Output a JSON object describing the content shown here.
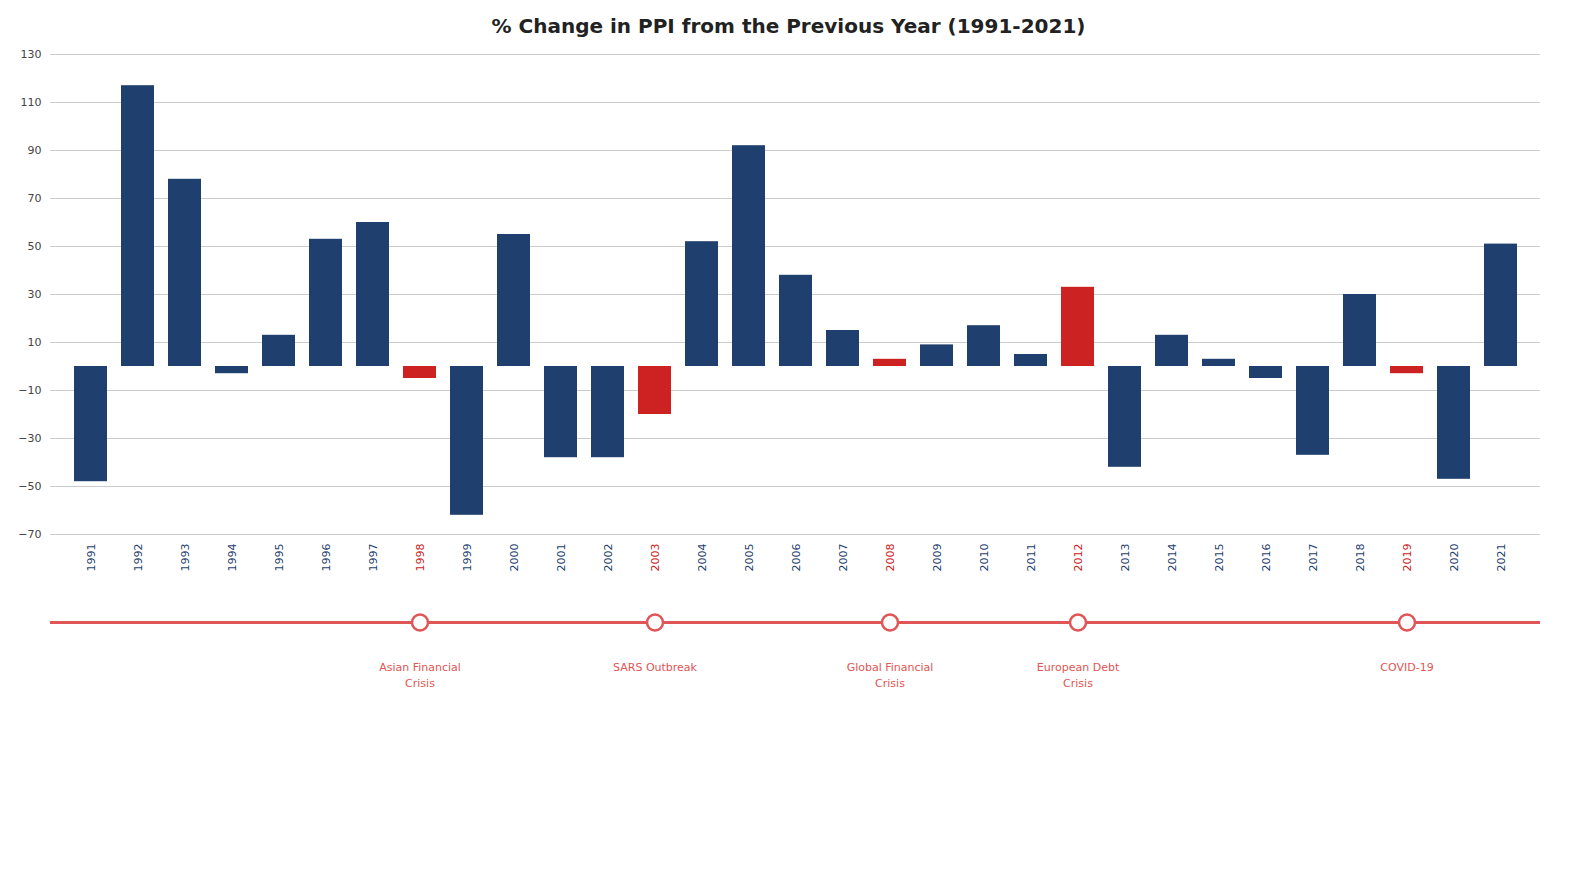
{
  "chart_data": {
    "type": "bar",
    "title": "% Change in PPI from the Previous Year (1991-2021)",
    "categories": [
      "1991",
      "1992",
      "1993",
      "1994",
      "1995",
      "1996",
      "1997",
      "1998",
      "1999",
      "2000",
      "2001",
      "2002",
      "2003",
      "2004",
      "2005",
      "2006",
      "2007",
      "2008",
      "2009",
      "2010",
      "2011",
      "2012",
      "2013",
      "2014",
      "2015",
      "2016",
      "2017",
      "2018",
      "2019",
      "2020",
      "2021"
    ],
    "values": [
      -48,
      117,
      78,
      -3,
      13,
      53,
      60,
      -5,
      -62,
      55,
      -38,
      -38,
      -20,
      52,
      92,
      38,
      15,
      3,
      9,
      17,
      5,
      33,
      -42,
      13,
      3,
      -5,
      -37,
      30,
      -3,
      -47,
      51
    ],
    "colors": [
      "#1f3f6e",
      "#1f3f6e",
      "#1f3f6e",
      "#1f3f6e",
      "#1f3f6e",
      "#1f3f6e",
      "#1f3f6e",
      "#cc2222",
      "#1f3f6e",
      "#1f3f6e",
      "#1f3f6e",
      "#1f3f6e",
      "#cc2222",
      "#1f3f6e",
      "#1f3f6e",
      "#1f3f6e",
      "#1f3f6e",
      "#cc2222",
      "#1f3f6e",
      "#1f3f6e",
      "#1f3f6e",
      "#cc2222",
      "#1f3f6e",
      "#1f3f6e",
      "#1f3f6e",
      "#1f3f6e",
      "#1f3f6e",
      "#1f3f6e",
      "#cc2222",
      "#1f3f6e",
      "#1f3f6e"
    ],
    "ylim": [
      -70,
      130
    ],
    "yticks": [
      -70,
      -50,
      -30,
      -10,
      10,
      30,
      50,
      70,
      90,
      110,
      130
    ],
    "grid": true,
    "annotations": [
      {
        "category": "1998",
        "text": "Asian Financial\nCrisis",
        "color": "#e05555"
      },
      {
        "category": "2003",
        "text": "SARS Outbreak",
        "color": "#e05555"
      },
      {
        "category": "2008",
        "text": "Global Financial\nCrisis",
        "color": "#e05555"
      },
      {
        "category": "2012",
        "text": "European Debt\nCrisis",
        "color": "#e05555"
      },
      {
        "category": "2019",
        "text": "COVID-19",
        "color": "#e05555"
      }
    ]
  }
}
